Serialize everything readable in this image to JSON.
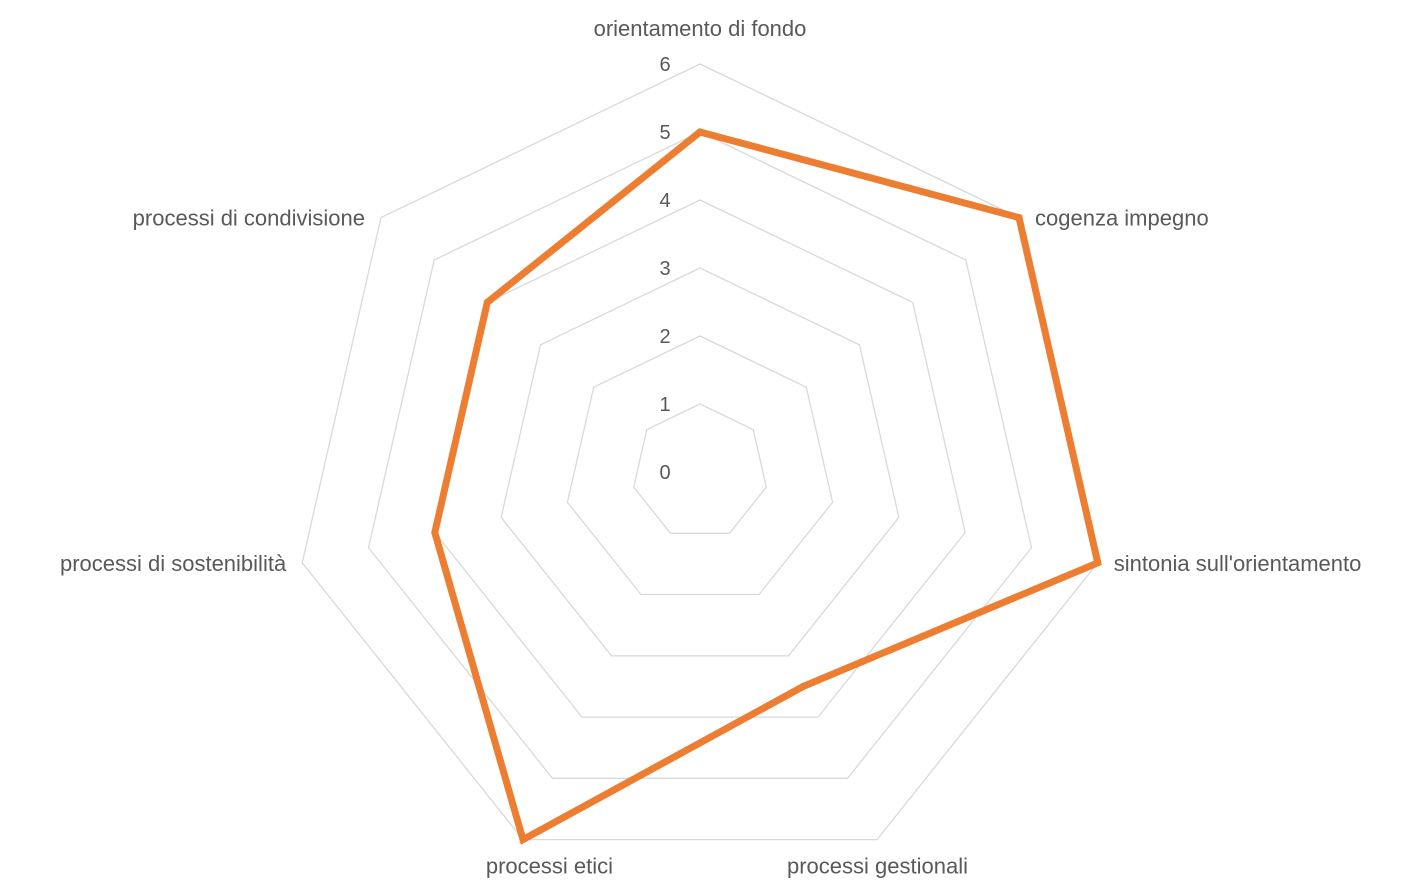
{
  "chart_data": {
    "type": "radar",
    "categories": [
      "orientamento di fondo",
      "cogenza impegno",
      "sintonia sull'orientamento",
      "processi gestionali",
      "processi etici",
      "processi di sostenibilità",
      "processi di condivisione"
    ],
    "series": [
      {
        "values": [
          5,
          6,
          6,
          3.5,
          6,
          4,
          4
        ],
        "color": "#ed7d31"
      }
    ],
    "rlim": [
      0,
      6
    ],
    "ticks": [
      0,
      1,
      2,
      3,
      4,
      5,
      6
    ],
    "grid": true,
    "grid_color": "#d9d9d9",
    "label_color": "#595959"
  }
}
